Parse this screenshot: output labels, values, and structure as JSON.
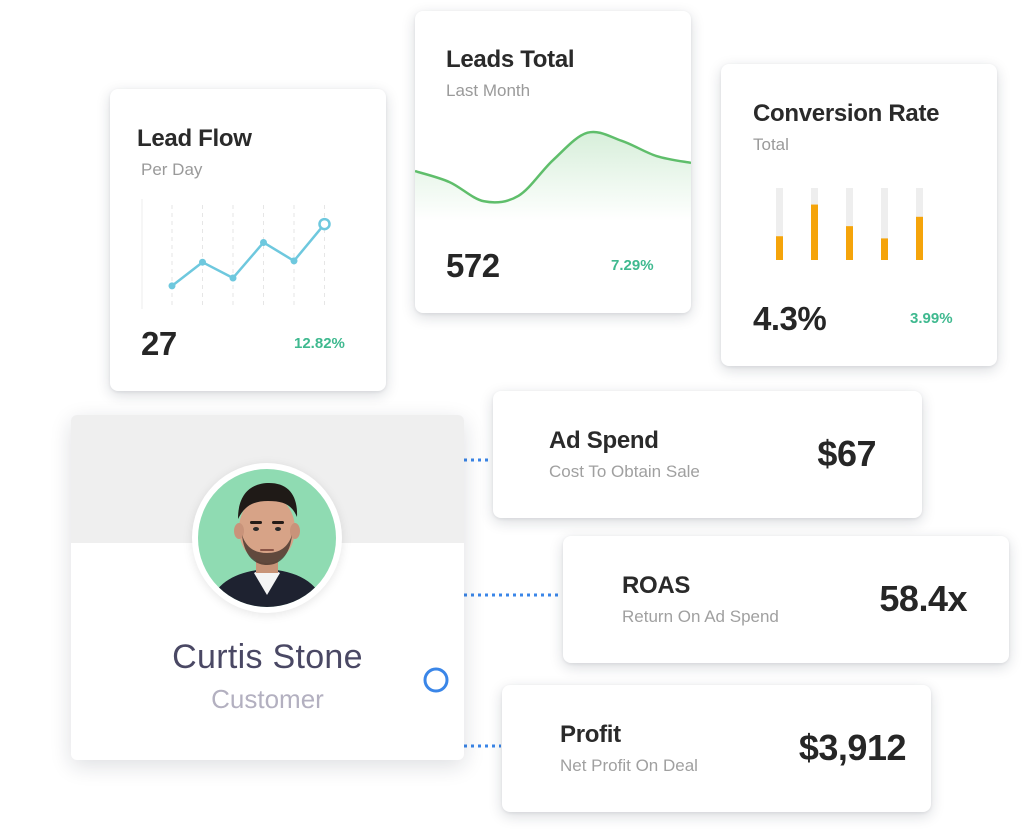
{
  "colors": {
    "accent_green": "#3fb98f",
    "line_blue": "#6ec8de",
    "line_green": "#5fbe6b",
    "bar_orange": "#f5a40a",
    "connector_blue": "#3a86e8"
  },
  "lead_flow": {
    "title": "Lead Flow",
    "subtitle": "Per Day",
    "value": "27",
    "change": "12.82%"
  },
  "leads_total": {
    "title": "Leads Total",
    "subtitle": "Last Month",
    "value": "572",
    "change": "7.29%"
  },
  "conversion_rate": {
    "title": "Conversion Rate",
    "subtitle": "Total",
    "value": "4.3%",
    "change": "3.99%"
  },
  "customer": {
    "name": "Curtis Stone",
    "role": "Customer",
    "avatar_icon": "person-photo-icon"
  },
  "ad_spend": {
    "title": "Ad Spend",
    "subtitle": "Cost To Obtain Sale",
    "value": "$67"
  },
  "roas": {
    "title": "ROAS",
    "subtitle": "Return On Ad Spend",
    "value": "58.4x"
  },
  "profit": {
    "title": "Profit",
    "subtitle": "Net Profit On Deal",
    "value": "$3,912"
  },
  "chart_data": [
    {
      "type": "line",
      "x": [
        1,
        2,
        3,
        4,
        5,
        6
      ],
      "values": [
        1,
        2.8,
        1.6,
        4.3,
        2.9,
        5.7
      ],
      "ylim": [
        0,
        7
      ]
    },
    {
      "type": "area",
      "x": [
        0,
        1,
        2,
        3,
        4,
        5,
        6,
        7,
        8
      ],
      "values": [
        3.2,
        2.4,
        1.0,
        1.4,
        4.0,
        6.0,
        5.4,
        4.3,
        3.8
      ],
      "ylim": [
        0,
        7
      ]
    },
    {
      "type": "bar",
      "categories": [
        "1",
        "2",
        "3",
        "4",
        "5"
      ],
      "values": [
        0.33,
        0.77,
        0.47,
        0.3,
        0.6
      ],
      "ylim": [
        0,
        1
      ]
    }
  ]
}
